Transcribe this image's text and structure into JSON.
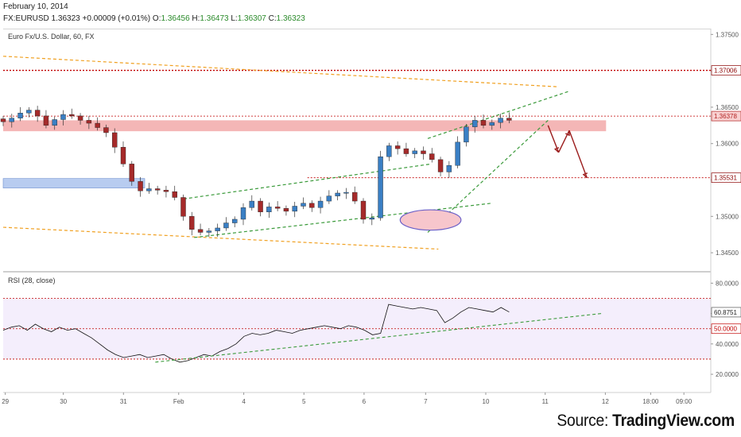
{
  "header": {
    "date": "February 10, 2014",
    "symbol": "FX:EURUSD",
    "last": "1.36323",
    "change": "+0.00009 (+0.01%)",
    "open_label": "O:",
    "open": "1.36456",
    "high_label": "H:",
    "high": "1.36473",
    "low_label": "L:",
    "low": "1.36307",
    "close_label": "C:",
    "close": "1.36323"
  },
  "footer": {
    "source_prefix": "Source: ",
    "source_name": "TradingView.com"
  },
  "chart_data": [
    {
      "type": "candlestick",
      "title": "Euro Fx/U.S. Dollar, 60, FX",
      "timeframe": "60",
      "ylim": [
        1.3425,
        1.3758
      ],
      "y_ticks": [
        1.345,
        1.35,
        1.355,
        1.36,
        1.365,
        1.37,
        1.375
      ],
      "y_tick_labels": [
        "1.34500",
        "1.35000",
        "1.35500",
        "1.36000",
        "1.36500",
        "1.37000",
        "1.37500"
      ],
      "price_labels": [
        {
          "value": 1.37006,
          "label": "1.37006",
          "color": "#8b0000"
        },
        {
          "value": 1.36378,
          "label": "1.36378",
          "color": "#b22222"
        },
        {
          "value": 1.35531,
          "label": "1.35531",
          "color": "#8b0000"
        }
      ],
      "x_labels": [
        "29",
        "30",
        "31",
        "Feb",
        "4",
        "5",
        "6",
        "7",
        "10",
        "11",
        "12",
        "18:00",
        "09:00"
      ],
      "bullish_color": "#3a7fc4",
      "bearish_color": "#a52a2a",
      "close_path": [
        1.363,
        1.3635,
        1.3642,
        1.3646,
        1.3638,
        1.3625,
        1.3633,
        1.364,
        1.3638,
        1.3632,
        1.3628,
        1.3622,
        1.3615,
        1.3595,
        1.3572,
        1.3548,
        1.3535,
        1.3538,
        1.3536,
        1.3534,
        1.3526,
        1.35,
        1.3482,
        1.3478,
        1.348,
        1.3484,
        1.3491,
        1.3496,
        1.3512,
        1.3521,
        1.3506,
        1.3513,
        1.3511,
        1.3507,
        1.3514,
        1.3518,
        1.3512,
        1.3521,
        1.3528,
        1.3532,
        1.3533,
        1.3521,
        1.3496,
        1.3498,
        1.3582,
        1.3597,
        1.3593,
        1.3586,
        1.359,
        1.3586,
        1.3578,
        1.3561,
        1.357,
        1.3602,
        1.3623,
        1.3632,
        1.3625,
        1.3629,
        1.3635,
        1.3632
      ],
      "horizontal_levels": [
        {
          "value": 1.37006,
          "color": "#c00000",
          "style": "dotted"
        },
        {
          "value": 1.36378,
          "color": "#c00000",
          "style": "dotted"
        },
        {
          "value": 1.35531,
          "color": "#c00000",
          "style": "dotted"
        }
      ],
      "zones": [
        {
          "from": 1.3617,
          "to": 1.3632,
          "color": "#f4b6b6"
        },
        {
          "from": 1.3539,
          "to": 1.3552,
          "color": "#b8ccf0"
        }
      ],
      "trendlines": [
        {
          "x0": 0.0,
          "y0": 1.372,
          "x1": 0.785,
          "y1": 1.3678,
          "color": "#f0a020",
          "dash": "dashed"
        },
        {
          "x0": 0.0,
          "y0": 1.3485,
          "x1": 0.615,
          "y1": 1.3455,
          "color": "#f0a020",
          "dash": "dashed"
        },
        {
          "x0": 0.255,
          "y0": 1.3524,
          "x1": 0.605,
          "y1": 1.3572,
          "color": "#3a9a3a",
          "dash": "dashed"
        },
        {
          "x0": 0.27,
          "y0": 1.3471,
          "x1": 0.69,
          "y1": 1.3518,
          "color": "#3a9a3a",
          "dash": "dashed"
        },
        {
          "x0": 0.6,
          "y0": 1.3478,
          "x1": 0.77,
          "y1": 1.3632,
          "color": "#3a9a3a",
          "dash": "dashed"
        },
        {
          "x0": 0.6,
          "y0": 1.3607,
          "x1": 0.8,
          "y1": 1.3672,
          "color": "#3a9a3a",
          "dash": "dashed"
        }
      ],
      "forecast_arrows": [
        {
          "x0": 0.77,
          "y0": 1.3625,
          "x1": 0.785,
          "y1": 1.3588
        },
        {
          "x0": 0.785,
          "y0": 1.3588,
          "x1": 0.8,
          "y1": 1.3618
        },
        {
          "x0": 0.8,
          "y0": 1.3618,
          "x1": 0.825,
          "y1": 1.3553
        }
      ],
      "ellipse": {
        "cx": 0.604,
        "cy": 1.3495,
        "rx": 0.043,
        "ry": 0.0014,
        "fill": "#f7c6cc",
        "stroke": "#6b5fc7"
      }
    },
    {
      "type": "line",
      "title": "RSI (28, close)",
      "ylim": [
        8,
        87
      ],
      "y_ticks": [
        20,
        40,
        60,
        80
      ],
      "y_tick_labels": [
        "20.0000",
        "40.0000",
        "60.0000",
        "80.0000"
      ],
      "levels": [
        70,
        50,
        30
      ],
      "current_value": 60.8751,
      "current_label": "60.8751",
      "mid_label": "50.0000",
      "rsi_path": [
        49,
        51,
        52,
        49,
        53,
        50,
        48,
        51,
        49,
        50,
        47,
        44,
        40,
        36,
        33,
        31,
        32,
        33,
        31,
        32,
        33,
        30,
        28,
        29,
        31,
        33,
        32,
        35,
        37,
        40,
        45,
        47,
        46,
        47,
        49,
        48,
        47,
        49,
        50,
        51,
        52,
        51,
        50,
        52,
        51,
        49,
        46,
        47,
        66,
        65,
        64,
        63,
        64,
        63,
        62,
        54,
        57,
        61,
        64,
        63,
        62,
        61,
        64,
        61
      ],
      "trendline": {
        "x0": 0.215,
        "y0": 28,
        "x1": 0.845,
        "y1": 60,
        "color": "#3a9a3a",
        "dash": "dashed"
      }
    }
  ]
}
